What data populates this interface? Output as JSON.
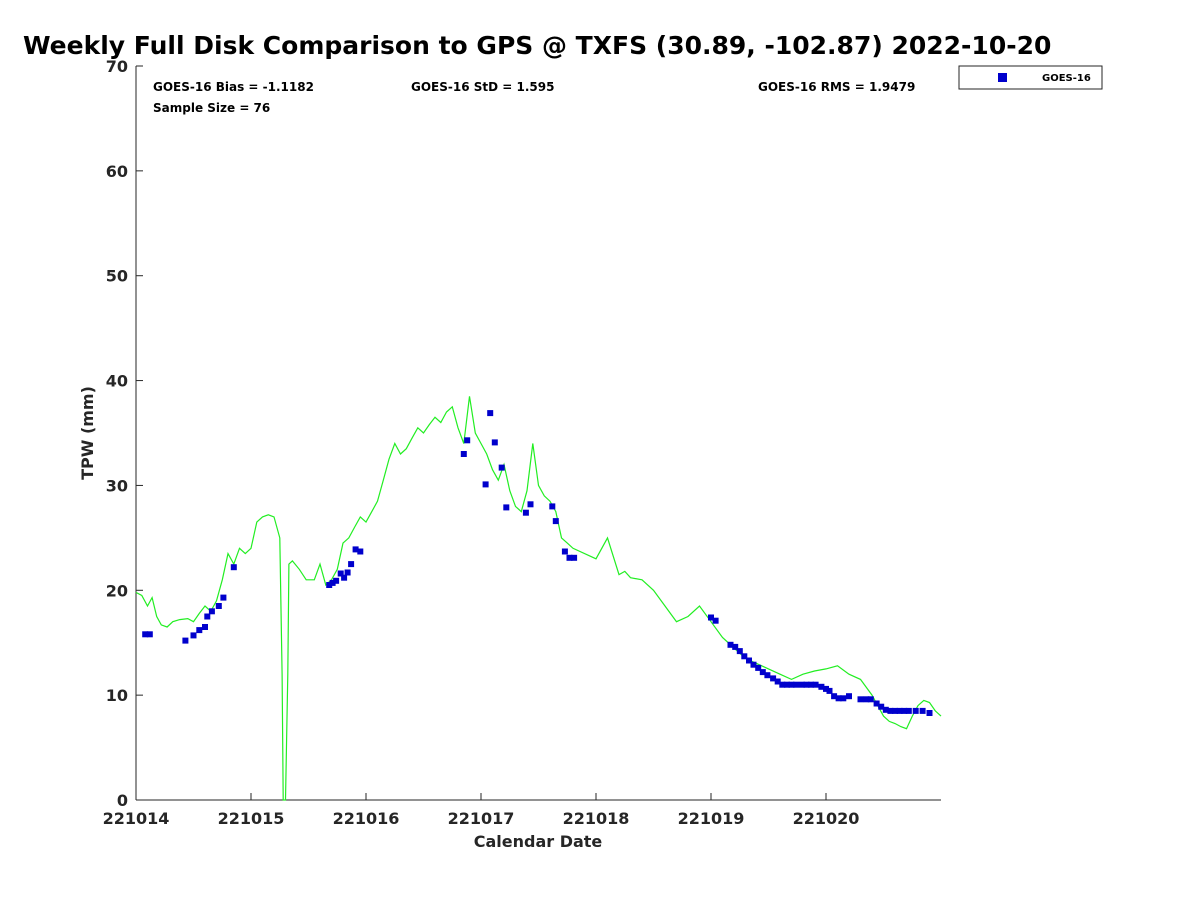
{
  "chart_data": {
    "type": "scatter",
    "title": "Weekly Full Disk Comparison to GPS @ TXFS (30.89, -102.87) 2022-10-20",
    "xlabel": "Calendar Date",
    "ylabel": "TPW (mm)",
    "xlim": [
      0,
      7
    ],
    "ylim": [
      0,
      70
    ],
    "x_ticks": [
      0,
      1,
      2,
      3,
      4,
      5,
      6
    ],
    "x_tick_labels": [
      "221014",
      "221015",
      "221016",
      "221017",
      "221018",
      "221019",
      "221020"
    ],
    "y_ticks": [
      0,
      10,
      20,
      30,
      40,
      50,
      60,
      70
    ],
    "y_tick_labels": [
      "0",
      "10",
      "20",
      "30",
      "40",
      "50",
      "60",
      "70"
    ],
    "grid": false,
    "legend_position": "top-right outside",
    "stats": {
      "bias": "GOES-16 Bias = -1.1182",
      "std": "GOES-16 StD = 1.595",
      "rms": "GOES-16 RMS = 1.9479",
      "sample": "Sample Size = 76"
    },
    "series": [
      {
        "name": "GOES-16",
        "kind": "scatter",
        "color": "#0000cc",
        "marker": "square",
        "x": [
          0.08,
          0.12,
          0.43,
          0.5,
          0.55,
          0.6,
          0.62,
          0.66,
          0.72,
          0.76,
          0.85,
          1.68,
          1.71,
          1.74,
          1.78,
          1.81,
          1.84,
          1.87,
          1.91,
          1.95,
          2.85,
          2.88,
          3.04,
          3.08,
          3.12,
          3.18,
          3.22,
          3.39,
          3.43,
          3.62,
          3.65,
          3.73,
          3.77,
          3.81,
          5.0,
          5.04,
          5.17,
          5.21,
          5.25,
          5.29,
          5.33,
          5.37,
          5.41,
          5.45,
          5.49,
          5.54,
          5.58,
          5.62,
          5.66,
          5.7,
          5.74,
          5.79,
          5.83,
          5.87,
          5.91,
          5.96,
          6.0,
          6.03,
          6.07,
          6.11,
          6.15,
          6.2,
          6.3,
          6.35,
          6.39,
          6.44,
          6.48,
          6.52,
          6.56,
          6.6,
          6.64,
          6.68,
          6.72,
          6.78,
          6.84,
          6.9
        ],
        "y": [
          15.8,
          15.8,
          15.2,
          15.7,
          16.2,
          16.5,
          17.5,
          18.0,
          18.5,
          19.3,
          22.2,
          20.5,
          20.7,
          20.9,
          21.6,
          21.2,
          21.7,
          22.5,
          23.9,
          23.7,
          33.0,
          34.3,
          30.1,
          36.9,
          34.1,
          31.7,
          27.9,
          27.4,
          28.2,
          28.0,
          26.6,
          23.7,
          23.1,
          23.1,
          17.4,
          17.1,
          14.8,
          14.6,
          14.2,
          13.7,
          13.3,
          12.9,
          12.6,
          12.2,
          11.9,
          11.6,
          11.3,
          11.0,
          11.0,
          11.0,
          11.0,
          11.0,
          11.0,
          11.0,
          11.0,
          10.8,
          10.6,
          10.4,
          9.9,
          9.7,
          9.7,
          9.9,
          9.6,
          9.6,
          9.6,
          9.2,
          8.9,
          8.6,
          8.5,
          8.5,
          8.5,
          8.5,
          8.5,
          8.5,
          8.5,
          8.3
        ]
      },
      {
        "kind": "line",
        "color": "#22ee22",
        "x": [
          0.0,
          0.05,
          0.1,
          0.14,
          0.18,
          0.22,
          0.27,
          0.32,
          0.38,
          0.45,
          0.5,
          0.55,
          0.6,
          0.65,
          0.7,
          0.75,
          0.8,
          0.85,
          0.9,
          0.95,
          1.0,
          1.05,
          1.1,
          1.15,
          1.2,
          1.25,
          1.27,
          1.28,
          1.3,
          1.32,
          1.33,
          1.36,
          1.42,
          1.48,
          1.55,
          1.6,
          1.65,
          1.7,
          1.75,
          1.8,
          1.85,
          1.9,
          1.95,
          2.0,
          2.05,
          2.1,
          2.15,
          2.2,
          2.25,
          2.3,
          2.35,
          2.4,
          2.45,
          2.5,
          2.55,
          2.6,
          2.65,
          2.7,
          2.75,
          2.8,
          2.85,
          2.9,
          2.95,
          3.0,
          3.05,
          3.1,
          3.15,
          3.2,
          3.25,
          3.3,
          3.35,
          3.4,
          3.45,
          3.5,
          3.55,
          3.6,
          3.65,
          3.7,
          3.75,
          3.8,
          4.0,
          4.1,
          4.2,
          4.25,
          4.3,
          4.4,
          4.5,
          4.6,
          4.7,
          4.8,
          4.9,
          5.0,
          5.1,
          5.2,
          5.3,
          5.4,
          5.5,
          5.6,
          5.7,
          5.8,
          5.9,
          6.0,
          6.1,
          6.2,
          6.3,
          6.4,
          6.5,
          6.55,
          6.6,
          6.65,
          6.7,
          6.75,
          6.8,
          6.85,
          6.9,
          6.95,
          7.0
        ],
        "y": [
          19.8,
          19.5,
          18.5,
          19.3,
          17.5,
          16.7,
          16.5,
          17.0,
          17.2,
          17.3,
          17.0,
          17.8,
          18.5,
          18.0,
          19.0,
          21.0,
          23.5,
          22.5,
          24.0,
          23.5,
          24.0,
          26.5,
          27.0,
          27.2,
          27.0,
          25.0,
          12.0,
          0.0,
          0.0,
          12.0,
          22.5,
          22.8,
          22.0,
          21.0,
          21.0,
          22.5,
          20.5,
          21.0,
          22.0,
          24.5,
          25.0,
          26.0,
          27.0,
          26.5,
          27.5,
          28.5,
          30.5,
          32.5,
          34.0,
          33.0,
          33.5,
          34.5,
          35.5,
          35.0,
          35.8,
          36.5,
          36.0,
          37.0,
          37.5,
          35.5,
          34.0,
          38.5,
          35.0,
          34.0,
          33.0,
          31.5,
          30.5,
          32.0,
          29.5,
          28.0,
          27.5,
          29.5,
          34.0,
          30.0,
          29.0,
          28.5,
          27.5,
          25.0,
          24.5,
          24.0,
          23.0,
          25.0,
          21.5,
          21.8,
          21.2,
          21.0,
          20.0,
          18.5,
          17.0,
          17.5,
          18.5,
          17.0,
          15.5,
          14.5,
          13.5,
          13.0,
          12.5,
          12.0,
          11.5,
          12.0,
          12.3,
          12.5,
          12.8,
          12.0,
          11.5,
          10.0,
          8.0,
          7.5,
          7.3,
          7.0,
          6.8,
          8.0,
          9.0,
          9.5,
          9.3,
          8.5,
          8.0
        ]
      }
    ]
  }
}
